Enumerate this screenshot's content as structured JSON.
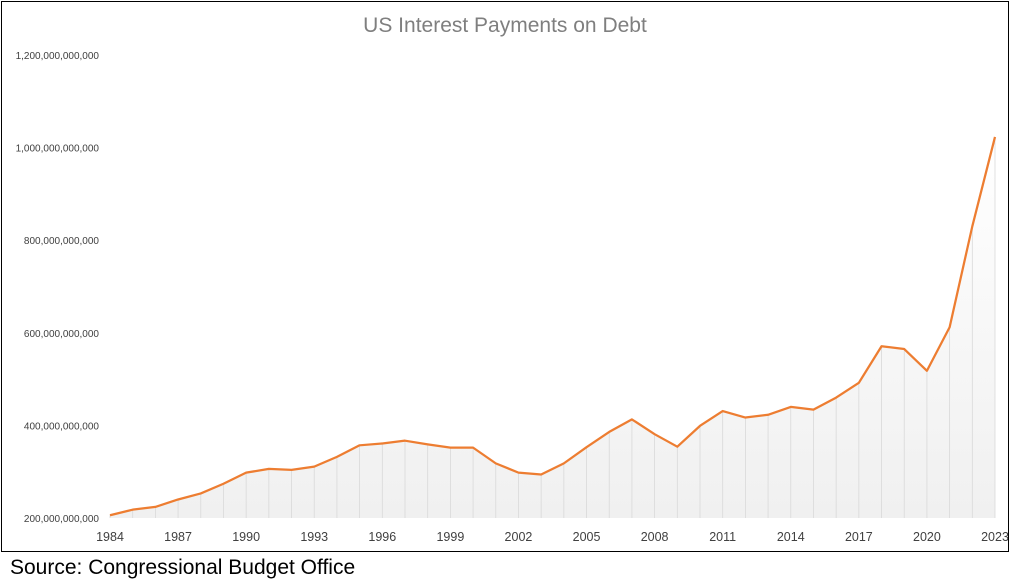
{
  "chart_data": {
    "type": "area",
    "title": "US Interest Payments on Debt",
    "xlabel": "",
    "ylabel": "",
    "x": [
      1984,
      1985,
      1986,
      1987,
      1988,
      1989,
      1990,
      1991,
      1992,
      1993,
      1994,
      1995,
      1996,
      1997,
      1998,
      1999,
      2000,
      2001,
      2002,
      2003,
      2004,
      2005,
      2006,
      2007,
      2008,
      2009,
      2010,
      2011,
      2012,
      2013,
      2014,
      2015,
      2016,
      2017,
      2018,
      2019,
      2020,
      2021,
      2022,
      2023
    ],
    "series": [
      {
        "values": [
          206000000000,
          218000000000,
          224000000000,
          240000000000,
          253000000000,
          274000000000,
          298000000000,
          306000000000,
          304000000000,
          311000000000,
          332000000000,
          357000000000,
          361000000000,
          367000000000,
          359000000000,
          352000000000,
          352000000000,
          318000000000,
          298000000000,
          294000000000,
          318000000000,
          353000000000,
          386000000000,
          413000000000,
          381000000000,
          354000000000,
          399000000000,
          431000000000,
          417000000000,
          423000000000,
          440000000000,
          434000000000,
          460000000000,
          492000000000,
          571000000000,
          565000000000,
          518000000000,
          612000000000,
          830000000000,
          1023000000000
        ],
        "color": "#ed7d31"
      }
    ],
    "ylim": [
      200000000000,
      1200000000000
    ],
    "yticks": [
      "200,000,000,000",
      "400,000,000,000",
      "600,000,000,000",
      "800,000,000,000",
      "1,000,000,000,000",
      "1,200,000,000,000"
    ],
    "xticks": [
      "1984",
      "1987",
      "1990",
      "1993",
      "1996",
      "1999",
      "2002",
      "2005",
      "2008",
      "2011",
      "2014",
      "2017",
      "2020",
      "2023"
    ],
    "grid": false,
    "legend": "none"
  },
  "source": "Source: Congressional Budget Office"
}
